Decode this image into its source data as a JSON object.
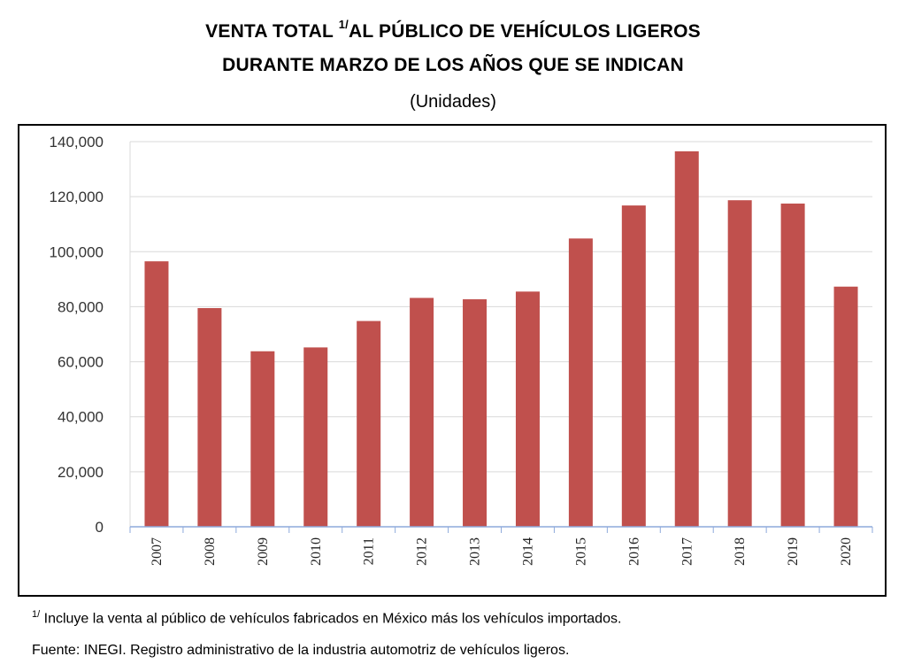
{
  "header": {
    "title_line1_pre": "VENTA TOTAL ",
    "title_line1_sup": "1/",
    "title_line1_post": "AL PÚBLICO DE VEHÍCULOS LIGEROS",
    "title_line2": "DURANTE MARZO DE LOS AÑOS QUE SE INDICAN",
    "subtitle": "(Unidades)"
  },
  "chart_data": {
    "type": "bar",
    "title": "VENTA TOTAL 1/AL PÚBLICO DE VEHÍCULOS LIGEROS DURANTE MARZO DE LOS AÑOS QUE SE INDICAN",
    "subtitle": "(Unidades)",
    "xlabel": "",
    "ylabel": "",
    "categories": [
      "2007",
      "2008",
      "2009",
      "2010",
      "2011",
      "2012",
      "2013",
      "2014",
      "2015",
      "2016",
      "2017",
      "2018",
      "2019",
      "2020"
    ],
    "values": [
      96500,
      79500,
      63800,
      65200,
      74800,
      83200,
      82700,
      85500,
      104800,
      116800,
      136500,
      118700,
      117500,
      87300
    ],
    "ylim": [
      0,
      140000
    ],
    "yticks": [
      0,
      20000,
      40000,
      60000,
      80000,
      100000,
      120000,
      140000
    ],
    "ytick_labels": [
      "0",
      "20,000",
      "40,000",
      "60,000",
      "80,000",
      "100,000",
      "120,000",
      "140,000"
    ],
    "grid": true,
    "legend": "none",
    "bar_color": "#c0504d"
  },
  "footnotes": {
    "note_sup": "1/",
    "note_text": " Incluye la venta al público de vehículos fabricados en México más los vehículos importados.",
    "source": "Fuente: INEGI. Registro administrativo de la industria automotriz de vehículos ligeros."
  }
}
